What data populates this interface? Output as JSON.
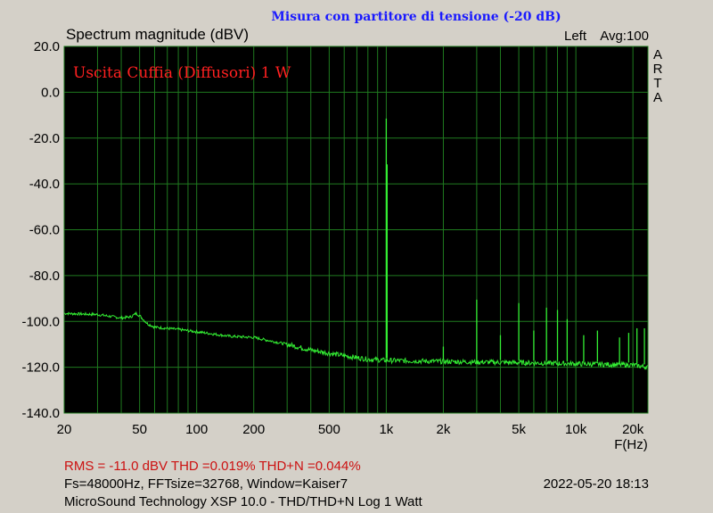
{
  "header": {
    "banner": "Misura con partitore di tensione (-20 dB)",
    "banner_color": "#1a1aff",
    "title": "Spectrum magnitude (dBV)",
    "channel": "Left",
    "averaging": "Avg:100",
    "side_label": [
      "A",
      "R",
      "T",
      "A"
    ]
  },
  "footer": {
    "rms": "RMS =  -11.0 dBV   THD =0.019%   THD+N =0.044%",
    "params": "Fs=48000Hz, FFTsize=32768, Window=Kaiser7",
    "timestamp": "2022-05-20  18:13",
    "software": "MicroSound Technology XSP 10.0 - THD/THD+N Log 1 Watt",
    "rms_color": "#cc1111"
  },
  "chart_data": {
    "type": "line",
    "title": "Spectrum magnitude (dBV)",
    "xlabel": "F(Hz)",
    "ylabel": "",
    "xscale": "log",
    "xlim": [
      20,
      24000
    ],
    "ylim": [
      -140,
      20
    ],
    "x_ticks": [
      20,
      50,
      100,
      200,
      500,
      1000,
      2000,
      5000,
      10000,
      20000
    ],
    "x_tick_labels": [
      "20",
      "50",
      "100",
      "200",
      "500",
      "1k",
      "2k",
      "5k",
      "10k",
      "20k"
    ],
    "y_ticks": [
      20,
      0,
      -20,
      -40,
      -60,
      -80,
      -100,
      -120,
      -140
    ],
    "y_tick_labels": [
      "20.0",
      "0.0",
      "-20.0",
      "-40.0",
      "-60.0",
      "-80.0",
      "-100.0",
      "-120.0",
      "-140.0"
    ],
    "grid": true,
    "annotation": "Uscita Cuffia (Diffusori) 1 W",
    "annotation_color": "#ff2020",
    "background": "#000000",
    "grid_color": "#1f7a1f",
    "trace_color": "#33ee33",
    "series": [
      {
        "floor": [
          [
            20,
            -96.5
          ],
          [
            30,
            -97
          ],
          [
            40,
            -98.5
          ],
          [
            45,
            -98
          ],
          [
            48,
            -96.5
          ],
          [
            50,
            -97.5
          ],
          [
            55,
            -101
          ],
          [
            60,
            -102.5
          ],
          [
            80,
            -103.5
          ],
          [
            100,
            -104.5
          ],
          [
            150,
            -106.5
          ],
          [
            200,
            -107
          ],
          [
            300,
            -110
          ],
          [
            400,
            -112.5
          ],
          [
            600,
            -115
          ],
          [
            800,
            -116.5
          ],
          [
            1000,
            -117
          ],
          [
            2000,
            -117.5
          ],
          [
            5000,
            -118
          ],
          [
            10000,
            -118.5
          ],
          [
            20000,
            -119
          ],
          [
            24000,
            -120
          ]
        ],
        "peaks": [
          [
            1000,
            -11.5
          ],
          [
            1010,
            -31.5
          ],
          [
            2000,
            -111
          ],
          [
            3000,
            -90.5
          ],
          [
            4000,
            -106
          ],
          [
            5000,
            -92
          ],
          [
            6000,
            -104
          ],
          [
            7000,
            -94
          ],
          [
            8000,
            -95
          ],
          [
            9000,
            -99
          ],
          [
            11000,
            -106
          ],
          [
            13000,
            -104
          ],
          [
            17000,
            -107
          ],
          [
            19000,
            -105
          ],
          [
            21000,
            -103
          ],
          [
            23000,
            -103
          ]
        ]
      }
    ]
  }
}
